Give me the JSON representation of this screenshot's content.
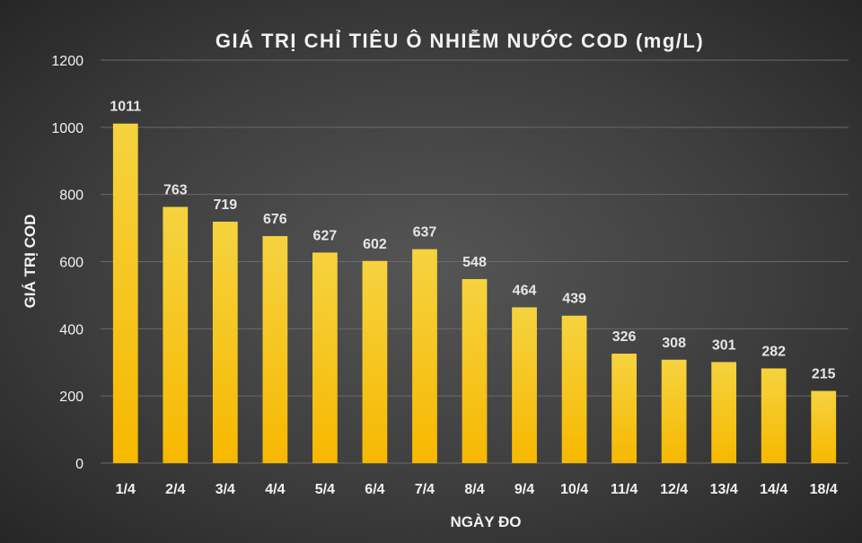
{
  "chart_data": {
    "type": "bar",
    "title": "GIÁ TRỊ CHỈ TIÊU Ô NHIỄM NƯỚC COD  (mg/L)",
    "xlabel": "NGÀY ĐO",
    "ylabel": "GIÁ TRỊ COD",
    "categories": [
      "1/4",
      "2/4",
      "3/4",
      "4/4",
      "5/4",
      "6/4",
      "7/4",
      "8/4",
      "9/4",
      "10/4",
      "11/4",
      "12/4",
      "13/4",
      "14/4",
      "18/4"
    ],
    "values": [
      1011,
      763,
      719,
      676,
      627,
      602,
      637,
      548,
      464,
      439,
      326,
      308,
      301,
      282,
      215
    ],
    "ylim": [
      0,
      1200
    ],
    "yticks": [
      0,
      200,
      400,
      600,
      800,
      1000,
      1200
    ],
    "grid": true,
    "legend": "none",
    "colors": {
      "bar_top": "#f5d33f",
      "bar_bottom": "#f7b800",
      "background": "#404040"
    }
  }
}
